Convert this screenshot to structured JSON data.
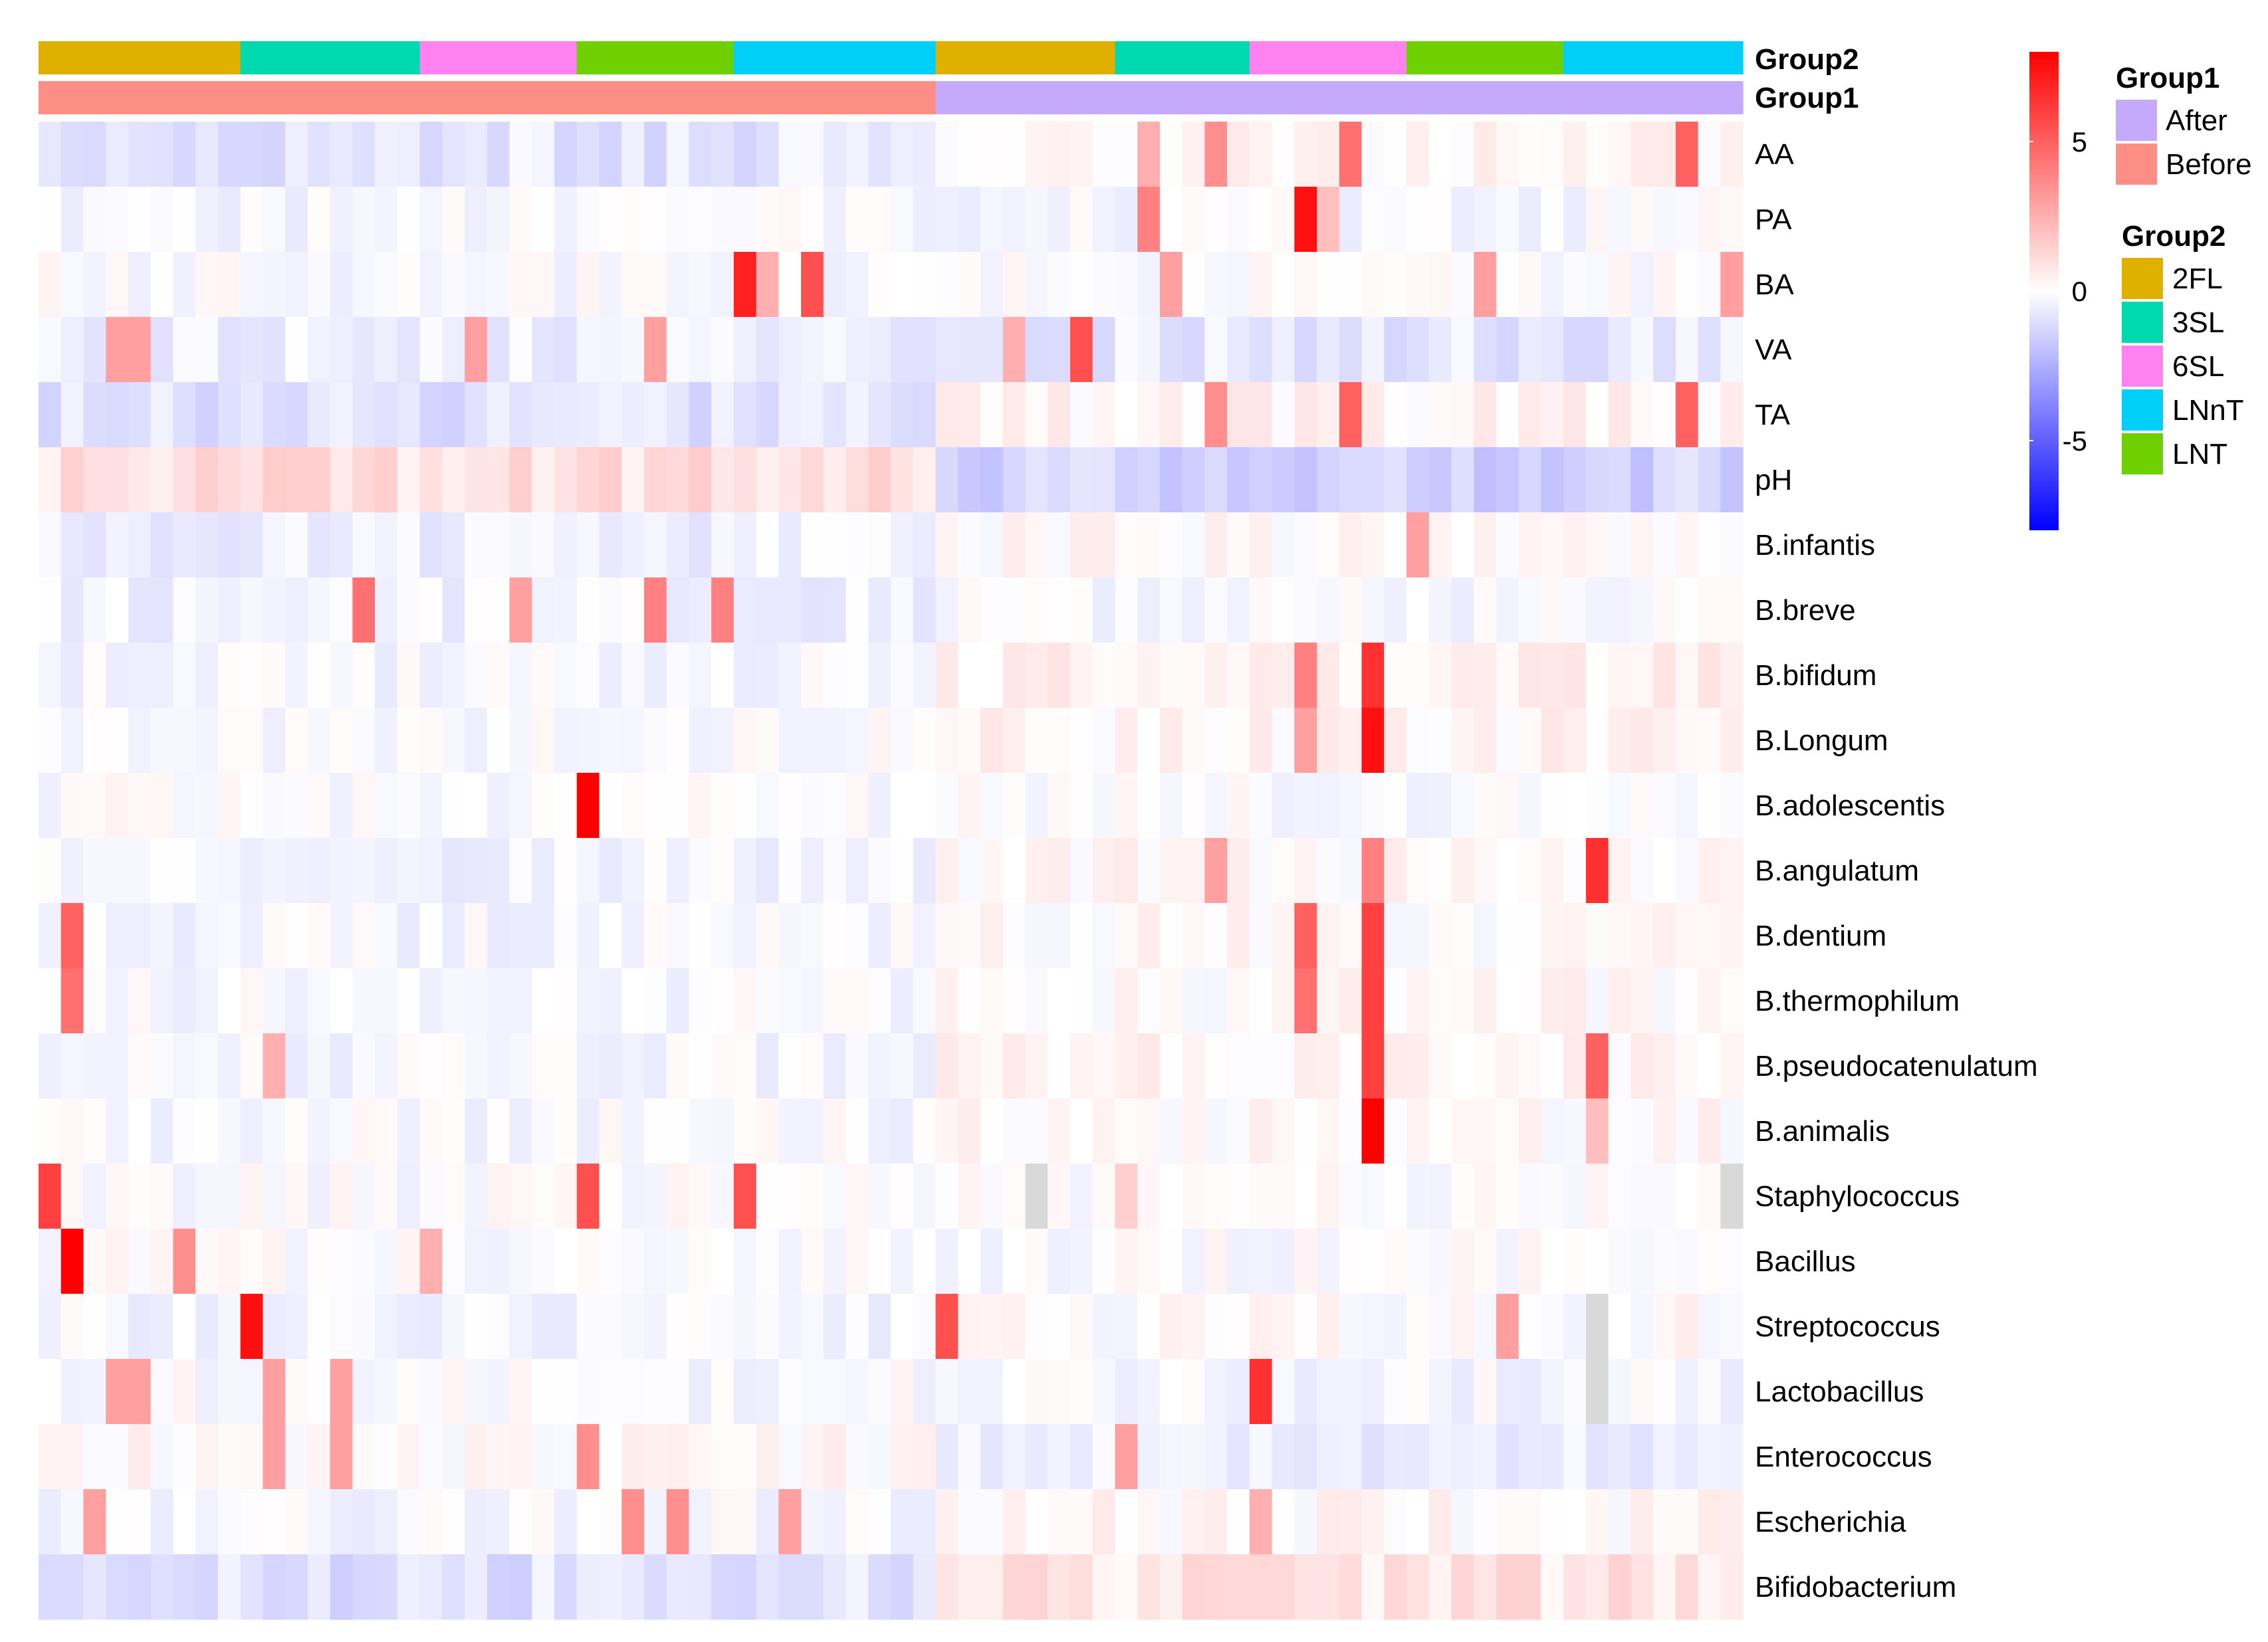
{
  "chart_data": {
    "type": "heatmap",
    "n_columns": 76,
    "rows": [
      "AA",
      "PA",
      "BA",
      "VA",
      "TA",
      "pH",
      "B.infantis",
      "B.breve",
      "B.bifidum",
      "B.Longum",
      "B.adolescentis",
      "B.angulatum",
      "B.dentium",
      "B.thermophilum",
      "B.pseudocatenulatum",
      "B.animalis",
      "Staphylococcus",
      "Bacillus",
      "Streptococcus",
      "Lactobacillus",
      "Enterococcus",
      "Escherichia",
      "Bifidobacterium"
    ],
    "annotations": {
      "group2_label": "Group2",
      "group1_label": "Group1",
      "group2_columns": [
        {
          "level": "2FL",
          "count": 9
        },
        {
          "level": "3SL",
          "count": 8
        },
        {
          "level": "6SL",
          "count": 7
        },
        {
          "level": "LNT",
          "count": 7
        },
        {
          "level": "LNnT",
          "count": 9
        },
        {
          "level": "2FL",
          "count": 8
        },
        {
          "level": "3SL",
          "count": 6
        },
        {
          "level": "6SL",
          "count": 7
        },
        {
          "level": "LNT",
          "count": 7
        },
        {
          "level": "LNnT",
          "count": 8
        }
      ],
      "group1_columns": [
        {
          "level": "Before",
          "count": 40
        },
        {
          "level": "After",
          "count": 36
        }
      ]
    },
    "color_scale": {
      "min": -8,
      "max": 8,
      "low_color": "#0000ff",
      "mid_color": "#ffffff",
      "high_color": "#ff0000",
      "ticks": [
        {
          "value": 5,
          "label": "5"
        },
        {
          "value": 0,
          "label": "0"
        },
        {
          "value": -5,
          "label": "-5"
        }
      ],
      "na_color": "#d9d9d9"
    },
    "legend_group1": {
      "title": "Group1",
      "items": [
        {
          "label": "After",
          "color": "#c5a9fb"
        },
        {
          "label": "Before",
          "color": "#fc8e85"
        }
      ]
    },
    "legend_group2": {
      "title": "Group2",
      "items": [
        {
          "label": "2FL",
          "color": "#e0b000"
        },
        {
          "label": "3SL",
          "color": "#00d8b0"
        },
        {
          "label": "6SL",
          "color": "#ff82f0"
        },
        {
          "label": "LNnT",
          "color": "#00d0f8"
        },
        {
          "label": "LNT",
          "color": "#6ed000"
        }
      ]
    },
    "row_baselines": {
      "AA": [
        -0.8,
        0.3
      ],
      "PA": [
        -0.2,
        -0.15
      ],
      "BA": [
        -0.1,
        -0.1
      ],
      "VA": [
        -0.5,
        -0.7
      ],
      "TA": [
        -0.9,
        0.3
      ],
      "pH": [
        1.0,
        -1.4
      ],
      "B.infantis": [
        -0.5,
        0.2
      ],
      "B.breve": [
        -0.4,
        -0.2
      ],
      "B.bifidum": [
        -0.2,
        0.4
      ],
      "B.Longum": [
        -0.15,
        0.3
      ],
      "B.adolescentis": [
        -0.05,
        -0.05
      ],
      "B.angulatum": [
        -0.35,
        0.2
      ],
      "B.dentium": [
        -0.2,
        0.15
      ],
      "B.thermophilum": [
        -0.15,
        0.15
      ],
      "B.pseudocatenulatum": [
        -0.25,
        0.3
      ],
      "B.animalis": [
        -0.15,
        0.15
      ],
      "Staphylococcus": [
        -0.05,
        -0.05
      ],
      "Bacillus": [
        -0.05,
        -0.05
      ],
      "Streptococcus": [
        -0.3,
        0.1
      ],
      "Lactobacillus": [
        -0.1,
        -0.2
      ],
      "Enterococcus": [
        0.2,
        -0.6
      ],
      "Escherichia": [
        -0.2,
        0.2
      ],
      "Bifidobacterium": [
        -0.9,
        0.8
      ]
    },
    "highlights": [
      {
        "row": "AA",
        "col": 52,
        "value": 3.5
      },
      {
        "row": "AA",
        "col": 58,
        "value": 4.5
      },
      {
        "row": "AA",
        "col": 73,
        "value": 5.0
      },
      {
        "row": "AA",
        "col": 49,
        "value": 2.5
      },
      {
        "row": "PA",
        "col": 56,
        "value": 7.5
      },
      {
        "row": "PA",
        "col": 49,
        "value": 4.0
      },
      {
        "row": "PA",
        "col": 57,
        "value": 2.0
      },
      {
        "row": "BA",
        "col": 31,
        "value": 7.0
      },
      {
        "row": "BA",
        "col": 34,
        "value": 5.5
      },
      {
        "row": "BA",
        "col": 32,
        "value": 2.5
      },
      {
        "row": "BA",
        "col": 50,
        "value": 3.0
      },
      {
        "row": "BA",
        "col": 64,
        "value": 3.0
      },
      {
        "row": "BA",
        "col": 75,
        "value": 3.0
      },
      {
        "row": "VA",
        "col": 3,
        "value": 3.0
      },
      {
        "row": "VA",
        "col": 4,
        "value": 3.0
      },
      {
        "row": "VA",
        "col": 19,
        "value": 3.0
      },
      {
        "row": "VA",
        "col": 27,
        "value": 3.0
      },
      {
        "row": "VA",
        "col": 46,
        "value": 5.5
      },
      {
        "row": "VA",
        "col": 43,
        "value": 2.5
      },
      {
        "row": "TA",
        "col": 52,
        "value": 3.5
      },
      {
        "row": "TA",
        "col": 58,
        "value": 5.0
      },
      {
        "row": "TA",
        "col": 73,
        "value": 5.0
      },
      {
        "row": "B.infantis",
        "col": 61,
        "value": 3.0
      },
      {
        "row": "B.breve",
        "col": 14,
        "value": 4.5
      },
      {
        "row": "B.breve",
        "col": 27,
        "value": 4.0
      },
      {
        "row": "B.breve",
        "col": 30,
        "value": 4.0
      },
      {
        "row": "B.breve",
        "col": 21,
        "value": 3.0
      },
      {
        "row": "B.bifidum",
        "col": 59,
        "value": 6.5
      },
      {
        "row": "B.bifidum",
        "col": 56,
        "value": 4.0
      },
      {
        "row": "B.Longum",
        "col": 59,
        "value": 7.5
      },
      {
        "row": "B.Longum",
        "col": 56,
        "value": 3.0
      },
      {
        "row": "B.adolescentis",
        "col": 24,
        "value": 8.0
      },
      {
        "row": "B.angulatum",
        "col": 69,
        "value": 6.5
      },
      {
        "row": "B.angulatum",
        "col": 59,
        "value": 4.0
      },
      {
        "row": "B.angulatum",
        "col": 52,
        "value": 3.0
      },
      {
        "row": "B.dentium",
        "col": 1,
        "value": 5.0
      },
      {
        "row": "B.dentium",
        "col": 56,
        "value": 5.0
      },
      {
        "row": "B.dentium",
        "col": 59,
        "value": 6.0
      },
      {
        "row": "B.thermophilum",
        "col": 1,
        "value": 4.5
      },
      {
        "row": "B.thermophilum",
        "col": 56,
        "value": 4.5
      },
      {
        "row": "B.thermophilum",
        "col": 59,
        "value": 6.0
      },
      {
        "row": "B.pseudocatenulatum",
        "col": 59,
        "value": 6.0
      },
      {
        "row": "B.pseudocatenulatum",
        "col": 69,
        "value": 5.0
      },
      {
        "row": "B.pseudocatenulatum",
        "col": 10,
        "value": 2.5
      },
      {
        "row": "B.animalis",
        "col": 59,
        "value": 8.0
      },
      {
        "row": "B.animalis",
        "col": 69,
        "value": 2.0
      },
      {
        "row": "Staphylococcus",
        "col": 0,
        "value": 6.0
      },
      {
        "row": "Staphylococcus",
        "col": 24,
        "value": 5.5
      },
      {
        "row": "Staphylococcus",
        "col": 31,
        "value": 5.5
      },
      {
        "row": "Staphylococcus",
        "col": 48,
        "value": 1.5
      },
      {
        "row": "Bacillus",
        "col": 1,
        "value": 8.0
      },
      {
        "row": "Bacillus",
        "col": 6,
        "value": 3.5
      },
      {
        "row": "Bacillus",
        "col": 17,
        "value": 2.5
      },
      {
        "row": "Streptococcus",
        "col": 9,
        "value": 7.5
      },
      {
        "row": "Streptococcus",
        "col": 40,
        "value": 5.5
      },
      {
        "row": "Streptococcus",
        "col": 65,
        "value": 3.0
      },
      {
        "row": "Lactobacillus",
        "col": 54,
        "value": 6.5
      },
      {
        "row": "Lactobacillus",
        "col": 3,
        "value": 3.0
      },
      {
        "row": "Lactobacillus",
        "col": 4,
        "value": 3.0
      },
      {
        "row": "Lactobacillus",
        "col": 10,
        "value": 3.0
      },
      {
        "row": "Lactobacillus",
        "col": 13,
        "value": 3.0
      },
      {
        "row": "Enterococcus",
        "col": 10,
        "value": 3.0
      },
      {
        "row": "Enterococcus",
        "col": 13,
        "value": 3.0
      },
      {
        "row": "Enterococcus",
        "col": 24,
        "value": 3.5
      },
      {
        "row": "Enterococcus",
        "col": 48,
        "value": 3.0
      },
      {
        "row": "Escherichia",
        "col": 2,
        "value": 3.0
      },
      {
        "row": "Escherichia",
        "col": 26,
        "value": 3.5
      },
      {
        "row": "Escherichia",
        "col": 28,
        "value": 3.5
      },
      {
        "row": "Escherichia",
        "col": 33,
        "value": 3.0
      },
      {
        "row": "Escherichia",
        "col": 54,
        "value": 2.5
      }
    ],
    "na_cells": [
      {
        "row": "Staphylococcus",
        "col": 44
      },
      {
        "row": "Staphylococcus",
        "col": 75
      },
      {
        "row": "Streptococcus",
        "col": 69
      },
      {
        "row": "Lactobacillus",
        "col": 69
      }
    ]
  }
}
